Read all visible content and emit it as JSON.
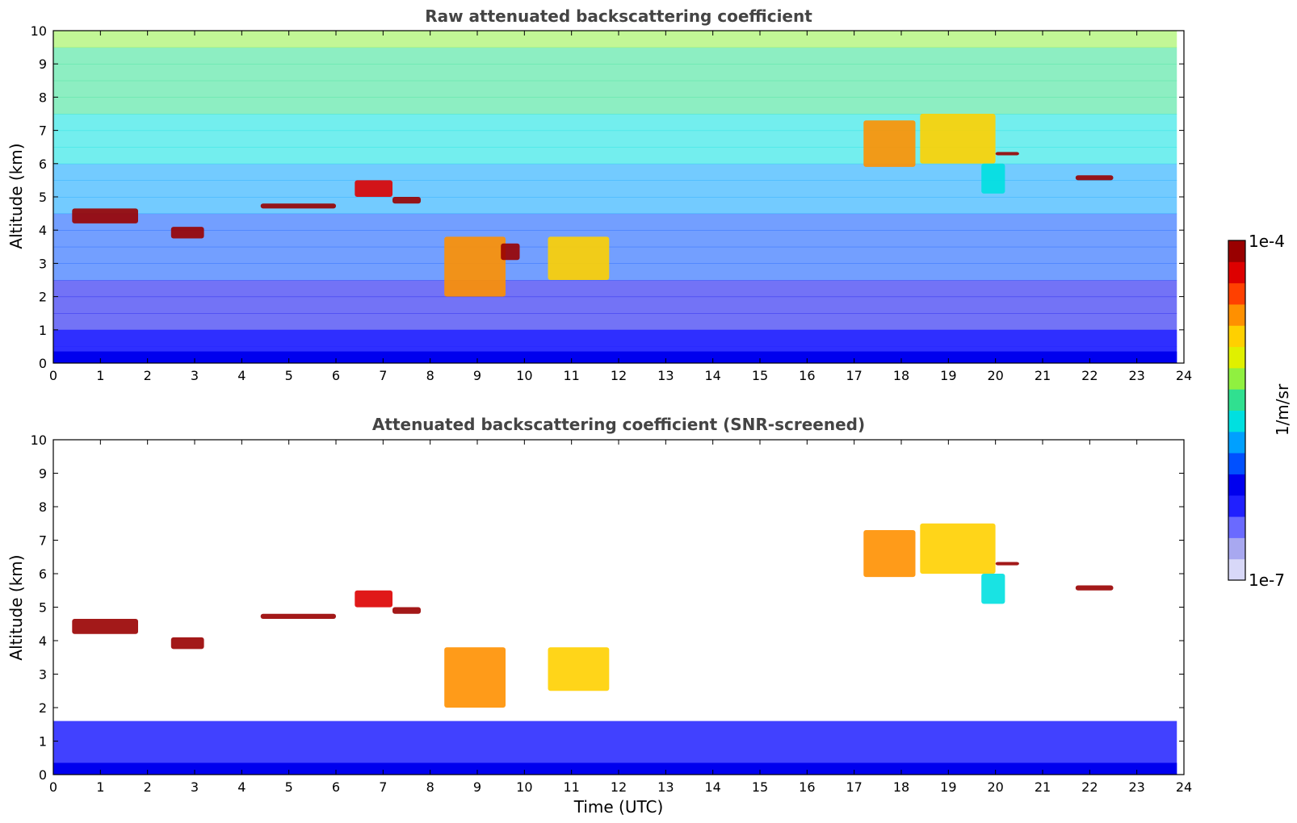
{
  "chart_data": [
    {
      "type": "heatmap",
      "title": "Raw attenuated backscattering coefficient",
      "xlabel": "",
      "ylabel": "Altitude (km)",
      "xlim": [
        0,
        24
      ],
      "ylim": [
        0,
        10
      ],
      "xticks": [
        "0",
        "1",
        "2",
        "3",
        "4",
        "5",
        "6",
        "7",
        "8",
        "9",
        "10",
        "11",
        "12",
        "13",
        "14",
        "15",
        "16",
        "17",
        "18",
        "19",
        "20",
        "21",
        "22",
        "23",
        "24"
      ],
      "yticks": [
        "0",
        "1",
        "2",
        "3",
        "4",
        "5",
        "6",
        "7",
        "8",
        "9",
        "10"
      ],
      "layers": [
        {
          "t0": 0.4,
          "t1": 1.8,
          "z0": 4.2,
          "z1": 4.65,
          "level": 1.0
        },
        {
          "t0": 2.5,
          "t1": 3.2,
          "z0": 3.75,
          "z1": 4.1,
          "level": 0.95
        },
        {
          "t0": 4.4,
          "t1": 6.0,
          "z0": 4.65,
          "z1": 4.8,
          "level": 1.0
        },
        {
          "t0": 6.4,
          "t1": 7.2,
          "z0": 5.0,
          "z1": 5.5,
          "level": 0.9
        },
        {
          "t0": 7.2,
          "t1": 7.8,
          "z0": 4.8,
          "z1": 5.0,
          "level": 1.0
        },
        {
          "t0": 8.3,
          "t1": 9.6,
          "z0": 2.0,
          "z1": 3.8,
          "level": 0.8
        },
        {
          "t0": 9.5,
          "t1": 9.9,
          "z0": 3.1,
          "z1": 3.6,
          "level": 0.95
        },
        {
          "t0": 10.5,
          "t1": 11.8,
          "z0": 2.5,
          "z1": 3.8,
          "level": 0.7
        },
        {
          "t0": 17.2,
          "t1": 18.3,
          "z0": 5.9,
          "z1": 7.3,
          "level": 0.75
        },
        {
          "t0": 18.4,
          "t1": 20.0,
          "z0": 6.0,
          "z1": 7.5,
          "level": 0.7
        },
        {
          "t0": 19.7,
          "t1": 20.2,
          "z0": 5.1,
          "z1": 6.0,
          "level": 0.45
        },
        {
          "t0": 20.0,
          "t1": 20.5,
          "z0": 6.25,
          "z1": 6.35,
          "level": 1.0
        },
        {
          "t0": 21.7,
          "t1": 22.5,
          "z0": 5.5,
          "z1": 5.65,
          "level": 1.0
        }
      ],
      "boundary_layer": {
        "top_km": 1.0,
        "level": 0.2
      }
    },
    {
      "type": "heatmap",
      "title": "Attenuated backscattering coefficient (SNR-screened)",
      "xlabel": "Time (UTC)",
      "ylabel": "Altitude (km)",
      "xlim": [
        0,
        24
      ],
      "ylim": [
        0,
        10
      ],
      "xticks": [
        "0",
        "1",
        "2",
        "3",
        "4",
        "5",
        "6",
        "7",
        "8",
        "9",
        "10",
        "11",
        "12",
        "13",
        "14",
        "15",
        "16",
        "17",
        "18",
        "19",
        "20",
        "21",
        "22",
        "23",
        "24"
      ],
      "yticks": [
        "0",
        "1",
        "2",
        "3",
        "4",
        "5",
        "6",
        "7",
        "8",
        "9",
        "10"
      ],
      "layers": [
        {
          "t0": 0.4,
          "t1": 1.8,
          "z0": 4.2,
          "z1": 4.65,
          "level": 1.0
        },
        {
          "t0": 2.5,
          "t1": 3.2,
          "z0": 3.75,
          "z1": 4.1,
          "level": 0.95
        },
        {
          "t0": 4.4,
          "t1": 6.0,
          "z0": 4.65,
          "z1": 4.8,
          "level": 1.0
        },
        {
          "t0": 6.4,
          "t1": 7.2,
          "z0": 5.0,
          "z1": 5.5,
          "level": 0.9
        },
        {
          "t0": 7.2,
          "t1": 7.8,
          "z0": 4.8,
          "z1": 5.0,
          "level": 1.0
        },
        {
          "t0": 8.3,
          "t1": 9.6,
          "z0": 2.0,
          "z1": 3.8,
          "level": 0.8
        },
        {
          "t0": 10.5,
          "t1": 11.8,
          "z0": 2.5,
          "z1": 3.8,
          "level": 0.7
        },
        {
          "t0": 17.2,
          "t1": 18.3,
          "z0": 5.9,
          "z1": 7.3,
          "level": 0.75
        },
        {
          "t0": 18.4,
          "t1": 20.0,
          "z0": 6.0,
          "z1": 7.5,
          "level": 0.7
        },
        {
          "t0": 19.7,
          "t1": 20.2,
          "z0": 5.1,
          "z1": 6.0,
          "level": 0.45
        },
        {
          "t0": 20.0,
          "t1": 20.5,
          "z0": 6.25,
          "z1": 6.35,
          "level": 1.0
        },
        {
          "t0": 21.7,
          "t1": 22.5,
          "z0": 5.5,
          "z1": 5.65,
          "level": 1.0
        }
      ],
      "boundary_layer": {
        "top_km": 1.6,
        "level": 0.2
      }
    }
  ],
  "colorbar": {
    "label": "1/m/sr",
    "max_label": "1e-4",
    "min_label": "1e-7",
    "colors": [
      "#d8d8f8",
      "#a8a8f0",
      "#6a6aff",
      "#2020ff",
      "#0000ee",
      "#0050ff",
      "#00a0ff",
      "#00e0e0",
      "#30e090",
      "#90f040",
      "#e0f000",
      "#ffd000",
      "#ff9000",
      "#ff4000",
      "#dd0000",
      "#990000"
    ]
  }
}
